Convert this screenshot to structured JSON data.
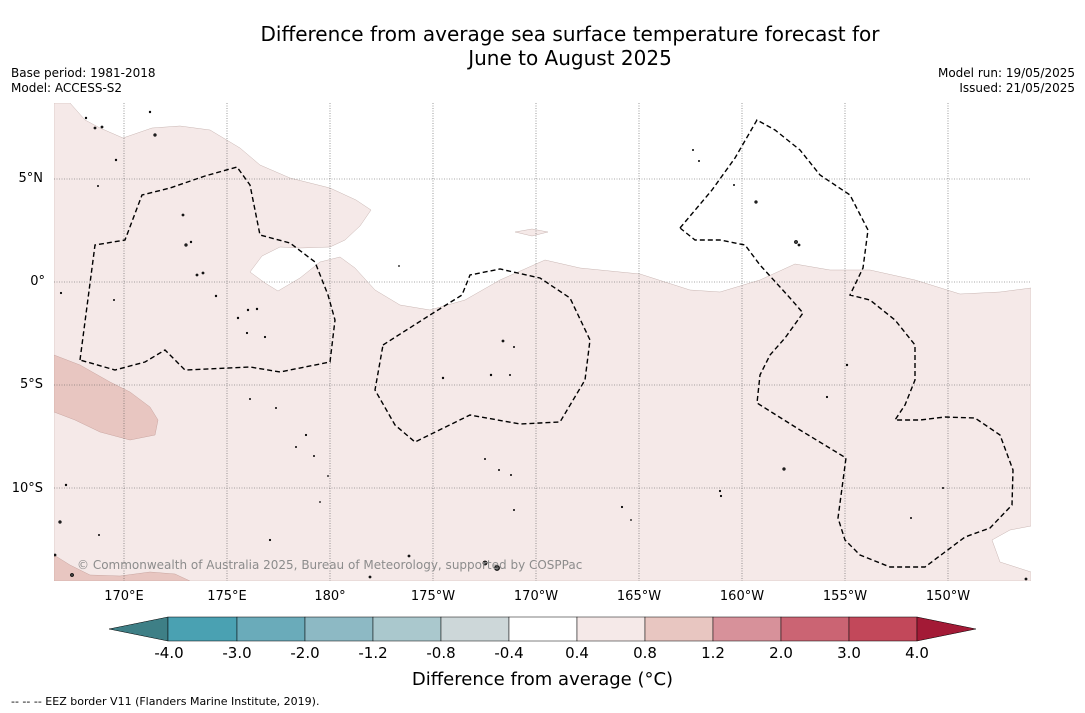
{
  "title_line1": "Difference from average sea surface temperature forecast for",
  "title_line2": "June to August 2025",
  "base_period": "Base period: 1981-2018",
  "model": "Model: ACCESS-S2",
  "model_run": "Model run: 19/05/2025",
  "issued": "Issued: 21/05/2025",
  "lat_labels": [
    "5°N",
    "0°",
    "5°S",
    "10°S"
  ],
  "lon_labels": [
    "170°E",
    "175°E",
    "180°",
    "175°W",
    "170°W",
    "165°W",
    "160°W",
    "155°W",
    "150°W"
  ],
  "copyright": "© Commonwealth of Australia 2025, Bureau of Meteorology, supported by COSPPac",
  "colorbar": {
    "ticks": [
      "-4.0",
      "-3.0",
      "-2.0",
      "-1.2",
      "-0.8",
      "-0.4",
      "0.4",
      "0.8",
      "1.2",
      "2.0",
      "3.0",
      "4.0"
    ],
    "colors": [
      "#3e7f86",
      "#4aa1b2",
      "#6aabba",
      "#8db9c4",
      "#aac8cd",
      "#cdd7d9",
      "#ffffff",
      "#f5e9e8",
      "#e8c6c1",
      "#d7919a",
      "#cb6473",
      "#c2485a",
      "#a31a36"
    ],
    "label": "Difference from average ($^\\circ$C)",
    "label_display": "Difference from average (°C)"
  },
  "map_colors": {
    "anomaly_0_4_to_0_8": "#f5e9e8",
    "anomaly_0_8_to_1_2": "#e8c6c1",
    "background": "#ffffff"
  },
  "footer": "--  --  -- EEZ border V11 (Flanders Marine Institute, 2019)."
}
